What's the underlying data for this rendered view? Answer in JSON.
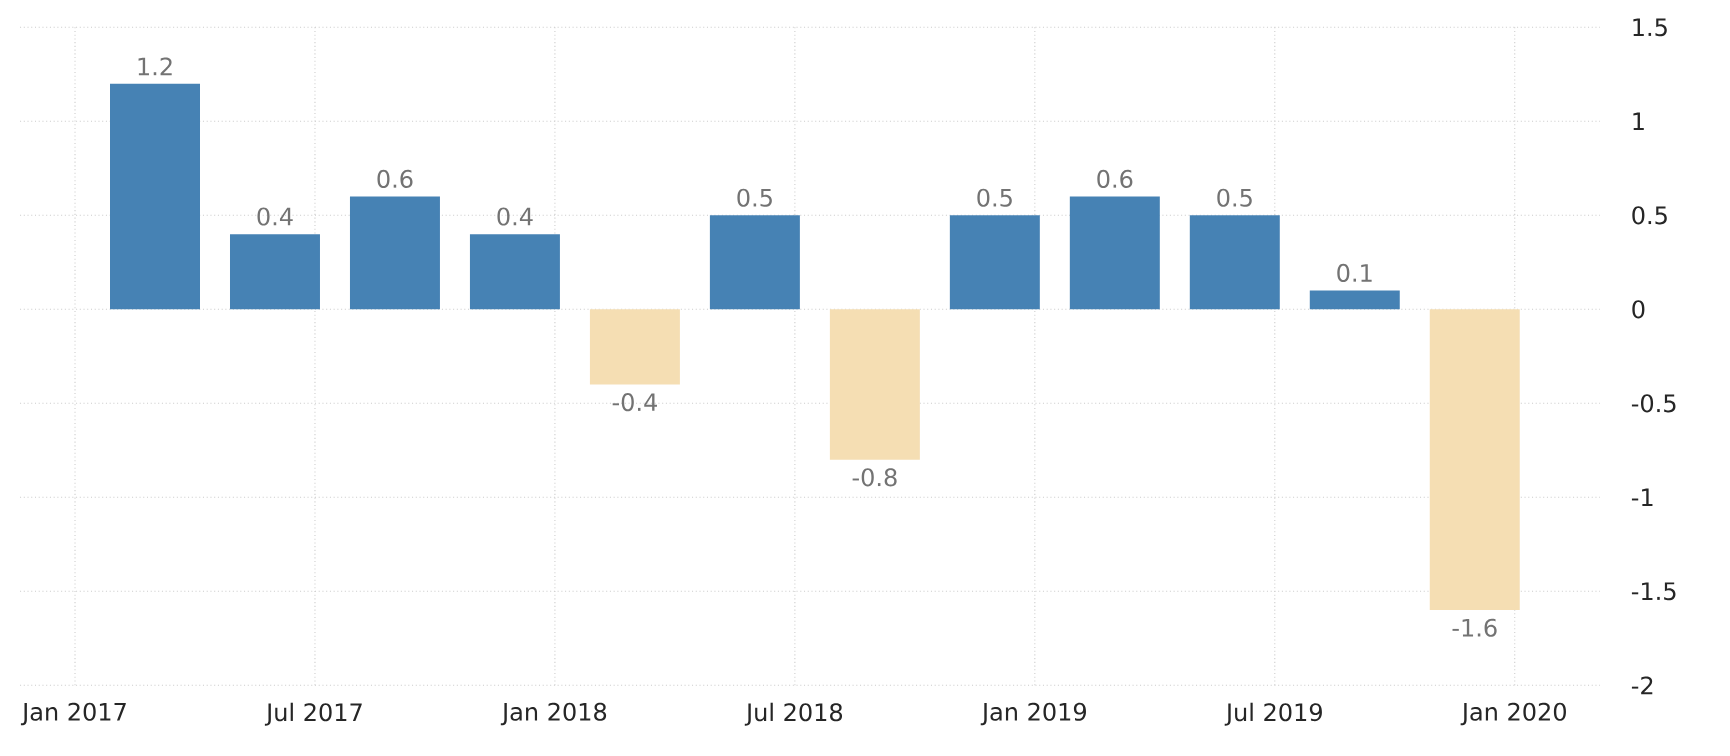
{
  "chart_data": {
    "type": "bar",
    "x": [
      "2017-03",
      "2017-06",
      "2017-09",
      "2017-12",
      "2018-03",
      "2018-06",
      "2018-09",
      "2018-12",
      "2019-03",
      "2019-06",
      "2019-09",
      "2019-12"
    ],
    "values": [
      1.2,
      0.4,
      0.6,
      0.4,
      -0.4,
      0.5,
      -0.8,
      0.5,
      0.6,
      0.5,
      0.1,
      -1.6
    ],
    "colors": [
      "#4682b4",
      "#4682b4",
      "#4682b4",
      "#4682b4",
      "#f5deb3",
      "#4682b4",
      "#f5deb3",
      "#4682b4",
      "#4682b4",
      "#4682b4",
      "#4682b4",
      "#f5deb3"
    ],
    "data_labels": true,
    "xlim": [
      "2016-11-20",
      "2020-03-05"
    ],
    "xticks": [
      {
        "value": "2017-01",
        "label": "Jan 2017"
      },
      {
        "value": "2017-07",
        "label": "Jul 2017"
      },
      {
        "value": "2018-01",
        "label": "Jan 2018"
      },
      {
        "value": "2018-07",
        "label": "Jul 2018"
      },
      {
        "value": "2019-01",
        "label": "Jan 2019"
      },
      {
        "value": "2019-07",
        "label": "Jul 2019"
      },
      {
        "value": "2020-01",
        "label": "Jan 2020"
      }
    ],
    "ylim": [
      -2,
      1.5
    ],
    "yticks": [
      -2,
      -1.5,
      -1,
      -0.5,
      0,
      0.5,
      1,
      1.5
    ],
    "grid": true
  }
}
